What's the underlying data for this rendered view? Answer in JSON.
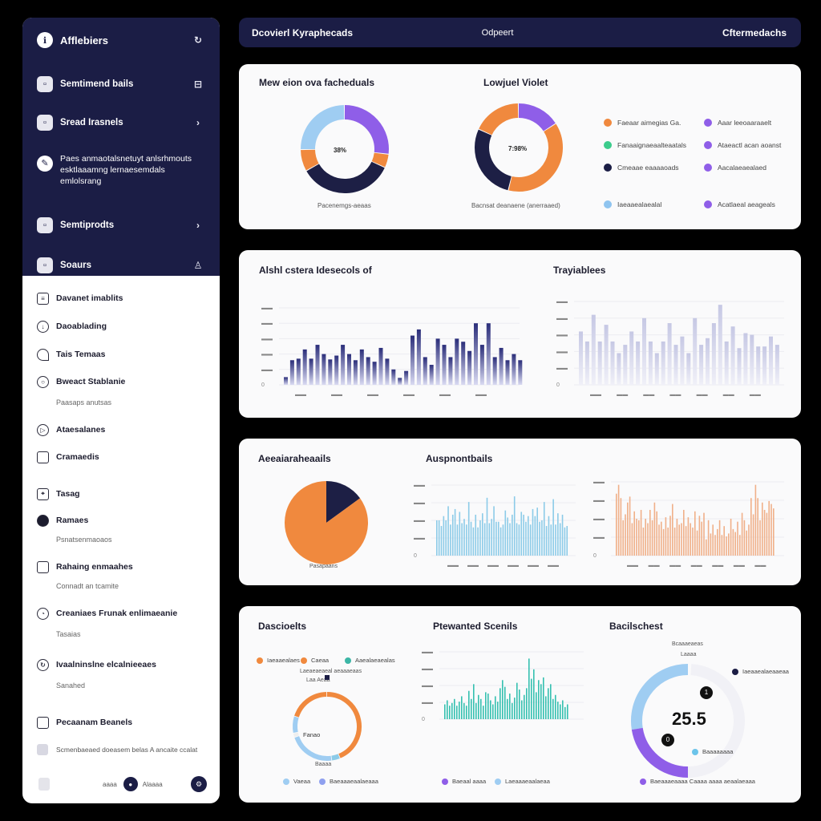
{
  "sidebar": {
    "app_title": "Afflebiers",
    "top_items": [
      {
        "label": "Semtimend bails",
        "icon": "square-icon",
        "tail": "⊟"
      },
      {
        "label": "Sread Irasnels",
        "icon": "square-icon",
        "tail": "›"
      },
      {
        "label": "Paes anmaotalsnetuyt anlsrhmouts esktlaaamng lernaesemdals emlolsrang",
        "icon": "pen-icon",
        "tail": ""
      },
      {
        "label": "Semtiprodts",
        "icon": "square-icon",
        "tail": "›"
      },
      {
        "label": "Soaurs",
        "icon": "square-icon",
        "tail": "♙"
      }
    ],
    "nav": [
      {
        "label": "Davanet imablits"
      },
      {
        "label": "Daoablading"
      },
      {
        "label": "Tais Temaas"
      },
      {
        "label": "Bweact Stablanie",
        "sub": "Paasaps anutsas"
      },
      {
        "label": "Ataesalanes"
      },
      {
        "label": "Cramaedis"
      },
      {
        "label": "Tasag"
      },
      {
        "label": "Ramaes",
        "sub": "Psnatsenmaoaos"
      },
      {
        "label": "Rahaing enmaahes",
        "sub": "Connadt an tcamite"
      },
      {
        "label": "Creaniaes Frunak enlimaeanie",
        "sub": "Tasaias"
      },
      {
        "label": "Ivaalninslne elcalnieeaes",
        "sub": "Sanahed"
      },
      {
        "label": "Pecaanam Beanels"
      }
    ],
    "checkbox_label": "Scmenbaeaed doeasem belas A ancaite ccalat",
    "footer": {
      "left_text": "aaaa",
      "right_text": "Alaaaa"
    }
  },
  "header": {
    "title": "Dcovierl Kyraphecads",
    "center": "Odpeert",
    "right": "Cftermedachs"
  },
  "row1": {
    "title_left": "Mew eion ova facheduals",
    "title_right": "Lowjuel Violet",
    "donut1_center": "38%",
    "donut1_caption": "Pacenemgs-aeaas",
    "donut2_center": "7:98%",
    "donut2_caption": "Bacnsat deanaene (anerraaed)",
    "legend": [
      {
        "label": "Faeaar aimegias Ga.",
        "color": "#f0893e"
      },
      {
        "label": "Aaar leeoaaraaelt",
        "color": "#8f5ee8"
      },
      {
        "label": "Fanaaignaeaalteaatals",
        "color": "#3ccc8c"
      },
      {
        "label": "Ataeactl acan aoanst",
        "color": "#8f5ee8"
      },
      {
        "label": "Cmeaae eaaaaoads",
        "color": "#1b1d45"
      },
      {
        "label": "Aacalaeaealaed",
        "color": "#8f5ee8"
      },
      {
        "label": "Iaeaaealaealal",
        "color": "#8fc4ef"
      },
      {
        "label": "Acatlaeal aeageals",
        "color": "#8f5ee8"
      }
    ],
    "colors": {
      "donut_light_blue": "#9fcdf2",
      "donut_purple": "#8f5ee8",
      "donut_orange": "#f0893e",
      "donut_navy": "#1d1f45"
    }
  },
  "row2": {
    "title_left": "Alshl cstera Idesecols of",
    "title_right": "Trayiablees",
    "left_bars": [
      0.1,
      0.32,
      0.34,
      0.46,
      0.34,
      0.52,
      0.4,
      0.33,
      0.38,
      0.52,
      0.4,
      0.32,
      0.46,
      0.36,
      0.3,
      0.48,
      0.34,
      0.2,
      0.09,
      0.18,
      0.64,
      0.72,
      0.36,
      0.26,
      0.6,
      0.52,
      0.36,
      0.6,
      0.56,
      0.44,
      0.8,
      0.52,
      0.8,
      0.36,
      0.48,
      0.32,
      0.4,
      0.32
    ],
    "right_bars": [
      0.64,
      0.52,
      0.84,
      0.52,
      0.72,
      0.52,
      0.38,
      0.48,
      0.64,
      0.52,
      0.8,
      0.52,
      0.38,
      0.52,
      0.74,
      0.48,
      0.58,
      0.38,
      0.8,
      0.48,
      0.56,
      0.74,
      0.96,
      0.52,
      0.7,
      0.44,
      0.62,
      0.6,
      0.46,
      0.46,
      0.58,
      0.48
    ]
  },
  "row3": {
    "title_left": "Aeeaiaraheaails",
    "title_right": "Auspnontbails",
    "pie_caption": "Pasapaans",
    "pie_values": [
      85,
      15
    ],
    "blue_bars": [
      0.5,
      0.5,
      0.42,
      0.56,
      0.5,
      0.7,
      0.44,
      0.58,
      0.66,
      0.44,
      0.62,
      0.46,
      0.52,
      0.44,
      0.76,
      0.48,
      0.4,
      0.58,
      0.4,
      0.5,
      0.6,
      0.46,
      0.82,
      0.46,
      0.52,
      0.7,
      0.48,
      0.48,
      0.4,
      0.44,
      0.64,
      0.54,
      0.46,
      0.58,
      0.84,
      0.46,
      0.44,
      0.62,
      0.58,
      0.48,
      0.56,
      0.44,
      0.66,
      0.56,
      0.68,
      0.48,
      0.5,
      0.76,
      0.42,
      0.56,
      0.44,
      0.8,
      0.44,
      0.6,
      0.46,
      0.58,
      0.4,
      0.42
    ],
    "orange_bars": [
      0.84,
      0.96,
      0.78,
      0.48,
      0.56,
      0.72,
      0.8,
      0.44,
      0.6,
      0.5,
      0.48,
      0.62,
      0.38,
      0.5,
      0.44,
      0.62,
      0.48,
      0.72,
      0.6,
      0.42,
      0.46,
      0.36,
      0.52,
      0.38,
      0.54,
      0.7,
      0.38,
      0.5,
      0.42,
      0.44,
      0.62,
      0.4,
      0.52,
      0.44,
      0.38,
      0.6,
      0.34,
      0.54,
      0.46,
      0.58,
      0.22,
      0.48,
      0.3,
      0.42,
      0.28,
      0.36,
      0.48,
      0.28,
      0.4,
      0.26,
      0.3,
      0.5,
      0.36,
      0.32,
      0.46,
      0.28,
      0.58,
      0.48,
      0.34,
      0.42,
      0.78,
      0.56,
      0.96,
      0.78,
      0.48,
      0.72,
      0.62,
      0.58,
      0.74,
      0.7,
      0.64
    ]
  },
  "row4": {
    "title_left": "Dascioelts",
    "title_middle": "Ptewanted Scenils",
    "title_right": "Bacilschest",
    "top_legend": [
      {
        "label": "Iaeaaealaes",
        "color": "#f0893e"
      },
      {
        "label": "Caeaa",
        "color": "#f0893e"
      },
      {
        "label": "Aaealaeaealas",
        "color": "#3cb6a6"
      }
    ],
    "ring_top_label": "Laeaeaeaeal aeaaaeaas",
    "ring_small_label": "Laa  Aeaa",
    "ring_center_label": "Fanao",
    "ring_bottom": "Baaaa",
    "bottom_legend": [
      {
        "label": "Vaeaa",
        "color": "#9fcdf2"
      },
      {
        "label": "Baeaaaeaalaeaaa",
        "color": "#8fa0ef"
      }
    ],
    "teal_bars": [
      0.22,
      0.28,
      0.2,
      0.24,
      0.3,
      0.2,
      0.26,
      0.34,
      0.24,
      0.2,
      0.42,
      0.3,
      0.52,
      0.24,
      0.36,
      0.3,
      0.2,
      0.4,
      0.38,
      0.28,
      0.22,
      0.34,
      0.26,
      0.46,
      0.58,
      0.48,
      0.3,
      0.38,
      0.24,
      0.32,
      0.54,
      0.44,
      0.28,
      0.36,
      0.46,
      0.9,
      0.6,
      0.74,
      0.4,
      0.58,
      0.52,
      0.62,
      0.34,
      0.46,
      0.52,
      0.3,
      0.36,
      0.26,
      0.22,
      0.28,
      0.18,
      0.22
    ],
    "teal_bottom_legend": [
      {
        "label": "Baeaal aaaa",
        "color": "#8f5ee8"
      },
      {
        "label": "Laeaaaeaalaeaa",
        "color": "#9fcdf2"
      }
    ],
    "gauge_top": "Bcaaaeaeas",
    "gauge_top_sub": "Laaaa",
    "gauge_value": "25.5",
    "gauge_badge_top": "1",
    "gauge_badge_bottom": "0",
    "gauge_right_label": "Iaeaaealaeaaeaa",
    "gauge_side_label": "Baaaaaaaa",
    "gauge_bottom_legend": [
      {
        "label": "Baeaaaeaaaa   Caaaa   aaaa aeaalaeaaa",
        "color": "#8f5ee8"
      }
    ]
  }
}
